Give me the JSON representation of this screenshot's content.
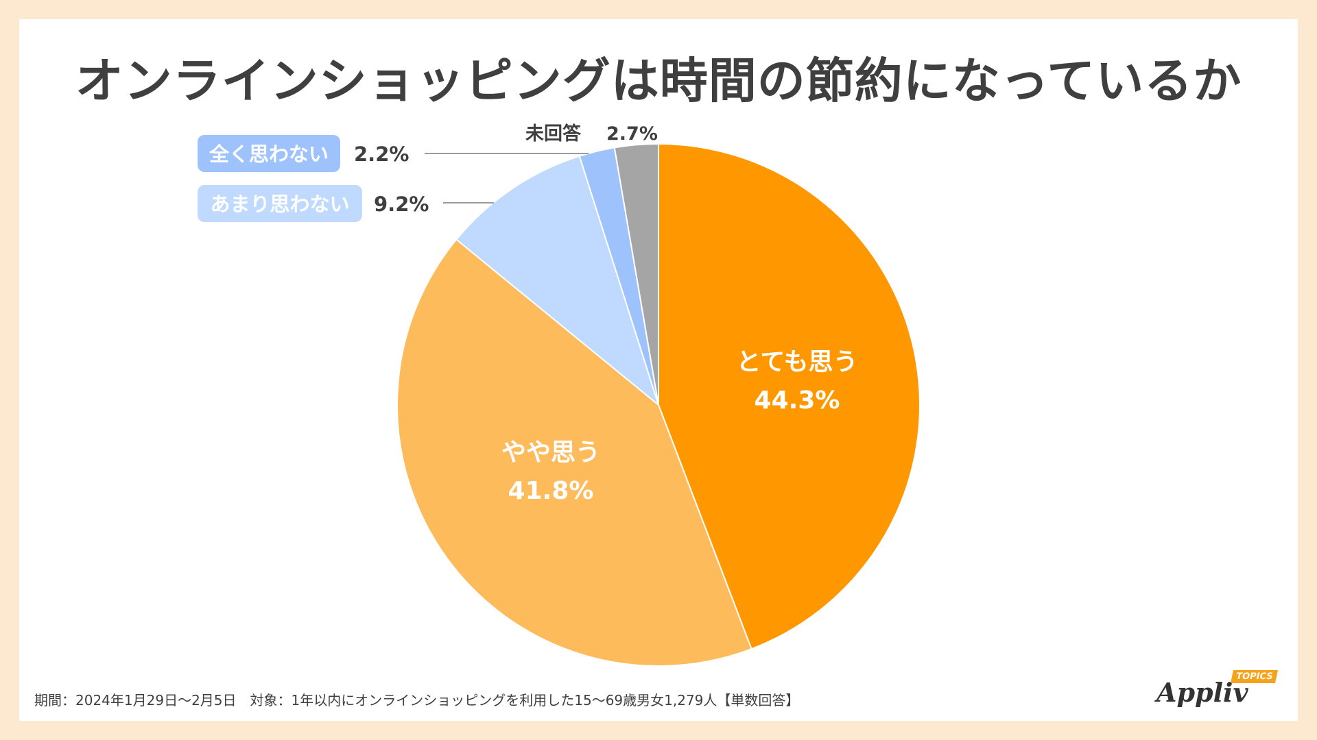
{
  "title": "オンラインショッピングは時間の節約になっているか",
  "footer": "期間：2024年1月29日～2月5日　対象：1年以内にオンラインショッピングを利用した15～69歳男女1,279人【単数回答】",
  "logo": {
    "word": "Appliv",
    "badge": "TOPICS"
  },
  "colors": {
    "background": "#fde9cf",
    "text": "#3f3f3f"
  },
  "chart_data": {
    "type": "pie",
    "start": "top",
    "direction": "clockwise",
    "slices": [
      {
        "label": "とても思う",
        "value": 44.3,
        "value_label": "44.3%",
        "color": "#ff9800",
        "label_style": "inside"
      },
      {
        "label": "やや思う",
        "value": 41.8,
        "value_label": "41.8%",
        "color": "#fdbb5c",
        "label_style": "inside"
      },
      {
        "label": "あまり思わない",
        "value": 9.2,
        "value_label": "9.2%",
        "color": "#bfd9ff",
        "label_style": "outside-badge"
      },
      {
        "label": "全く思わない",
        "value": 2.2,
        "value_label": "2.2%",
        "color": "#9ec3fc",
        "label_style": "outside-badge"
      },
      {
        "label": "未回答",
        "value": 2.7,
        "value_label": "2.7%",
        "color": "#a5a5a5",
        "label_style": "outside-plain"
      }
    ]
  }
}
